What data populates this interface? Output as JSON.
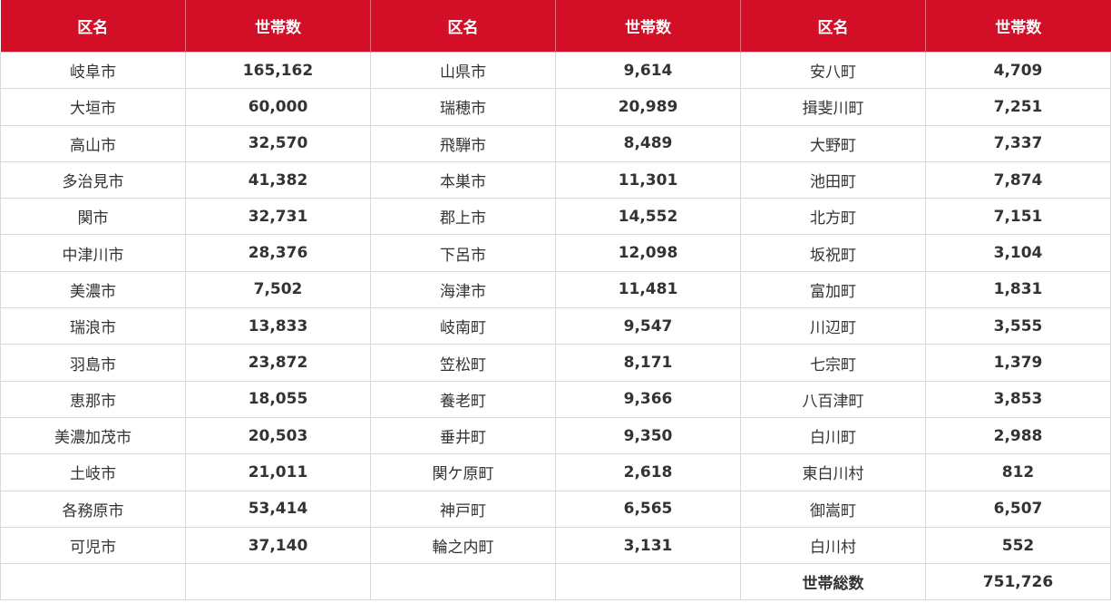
{
  "headers": [
    "区名",
    "世帯数",
    "区名",
    "世帯数",
    "区名",
    "世帯数"
  ],
  "rows": [
    [
      {
        "name": "岐阜市",
        "value": "165,162"
      },
      {
        "name": "山県市",
        "value": "9,614"
      },
      {
        "name": "安八町",
        "value": "4,709"
      }
    ],
    [
      {
        "name": "大垣市",
        "value": "60,000"
      },
      {
        "name": "瑞穂市",
        "value": "20,989"
      },
      {
        "name": "揖斐川町",
        "value": "7,251"
      }
    ],
    [
      {
        "name": "高山市",
        "value": "32,570"
      },
      {
        "name": "飛騨市",
        "value": "8,489"
      },
      {
        "name": "大野町",
        "value": "7,337"
      }
    ],
    [
      {
        "name": "多治見市",
        "value": "41,382"
      },
      {
        "name": "本巣市",
        "value": "11,301"
      },
      {
        "name": "池田町",
        "value": "7,874"
      }
    ],
    [
      {
        "name": "関市",
        "value": "32,731"
      },
      {
        "name": "郡上市",
        "value": "14,552"
      },
      {
        "name": "北方町",
        "value": "7,151"
      }
    ],
    [
      {
        "name": "中津川市",
        "value": "28,376"
      },
      {
        "name": "下呂市",
        "value": "12,098"
      },
      {
        "name": "坂祝町",
        "value": "3,104"
      }
    ],
    [
      {
        "name": "美濃市",
        "value": "7,502"
      },
      {
        "name": "海津市",
        "value": "11,481"
      },
      {
        "name": "富加町",
        "value": "1,831"
      }
    ],
    [
      {
        "name": "瑞浪市",
        "value": "13,833"
      },
      {
        "name": "岐南町",
        "value": "9,547"
      },
      {
        "name": "川辺町",
        "value": "3,555"
      }
    ],
    [
      {
        "name": "羽島市",
        "value": "23,872"
      },
      {
        "name": "笠松町",
        "value": "8,171"
      },
      {
        "name": "七宗町",
        "value": "1,379"
      }
    ],
    [
      {
        "name": "恵那市",
        "value": "18,055"
      },
      {
        "name": "養老町",
        "value": "9,366"
      },
      {
        "name": "八百津町",
        "value": "3,853"
      }
    ],
    [
      {
        "name": "美濃加茂市",
        "value": "20,503"
      },
      {
        "name": "垂井町",
        "value": "9,350"
      },
      {
        "name": "白川町",
        "value": "2,988"
      }
    ],
    [
      {
        "name": "土岐市",
        "value": "21,011"
      },
      {
        "name": "関ケ原町",
        "value": "2,618"
      },
      {
        "name": "東白川村",
        "value": "812"
      }
    ],
    [
      {
        "name": "各務原市",
        "value": "53,414"
      },
      {
        "name": "神戸町",
        "value": "6,565"
      },
      {
        "name": "御嵩町",
        "value": "6,507"
      }
    ],
    [
      {
        "name": "可児市",
        "value": "37,140"
      },
      {
        "name": "輪之内町",
        "value": "3,131"
      },
      {
        "name": "白川村",
        "value": "552"
      }
    ]
  ],
  "total": {
    "label": "世帯総数",
    "value": "751,726"
  },
  "colors": {
    "header_bg": "#d20f27",
    "header_text": "#ffffff",
    "border": "#d8d8d8",
    "text": "#333333"
  }
}
